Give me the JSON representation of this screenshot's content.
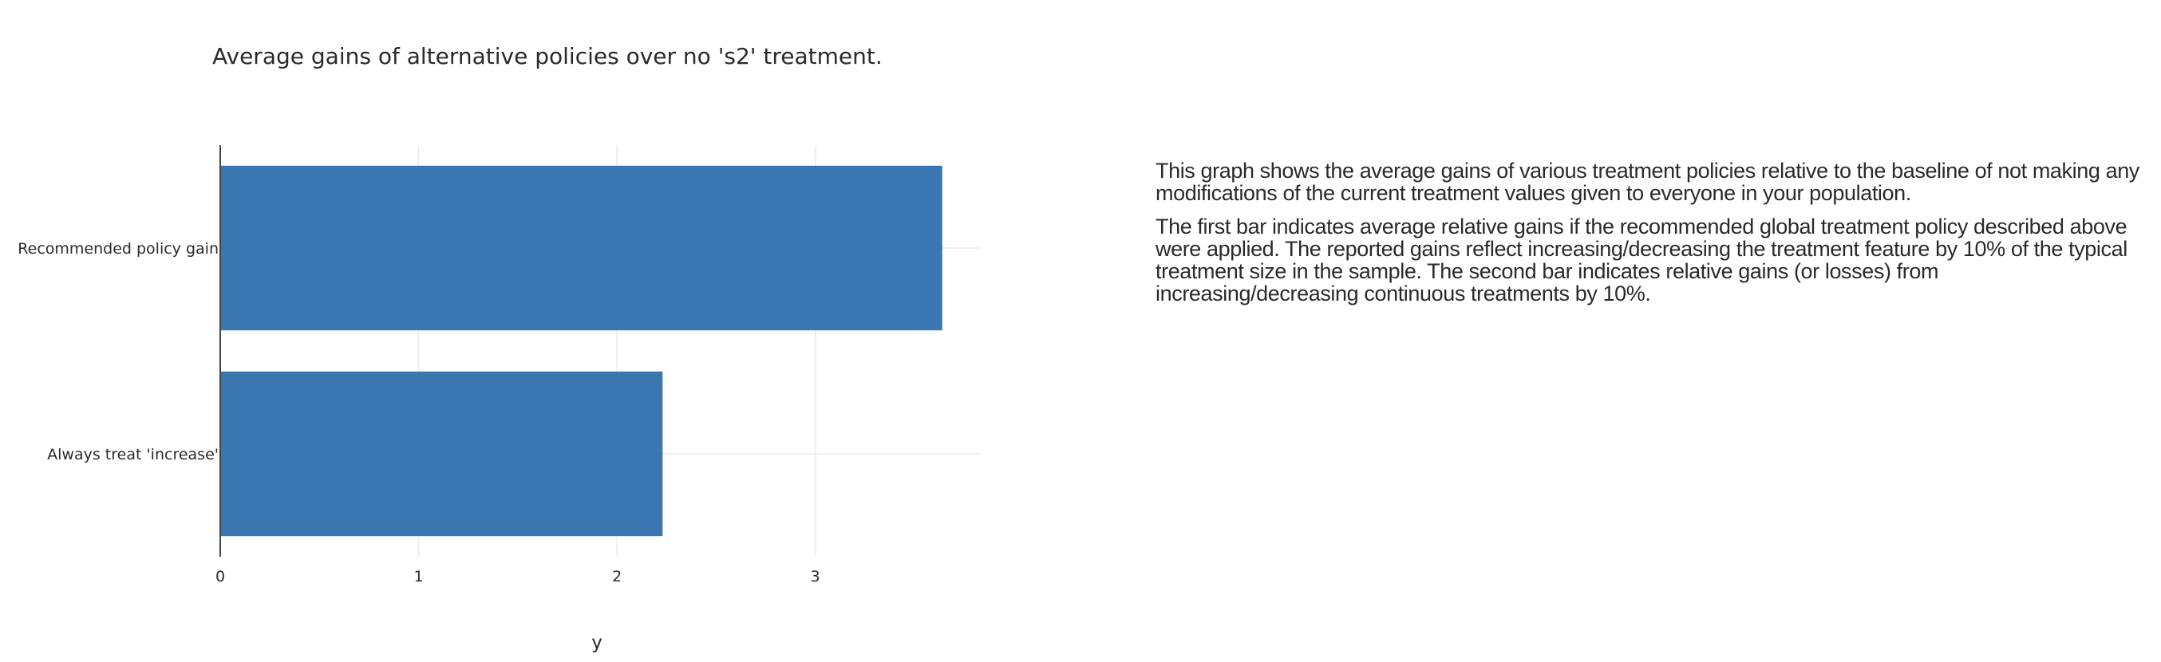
{
  "chart_data": {
    "type": "bar",
    "orientation": "horizontal",
    "title": "Average gains of alternative policies over no 's2' treatment.",
    "xlabel": "y",
    "ylabel": "",
    "categories": [
      "Recommended policy gain",
      "Always treat 'increase'"
    ],
    "values": [
      3.64,
      2.23
    ],
    "xlim": [
      0,
      3.83
    ],
    "xticks": [
      0,
      1,
      2,
      3
    ],
    "grid": true,
    "bar_color": "#3a77b0"
  },
  "description": {
    "paragraphs": [
      "This graph shows the average gains of various treatment policies relative to the baseline of not making any modifications of the current treatment values given to everyone in your population.",
      "The first bar indicates average relative gains if the recommended global treatment policy described above were applied. The reported gains reflect increasing/decreasing the treatment feature by 10% of the typical treatment size in the sample. The second bar indicates relative gains (or losses) from increasing/decreasing continuous treatments by 10%."
    ]
  }
}
